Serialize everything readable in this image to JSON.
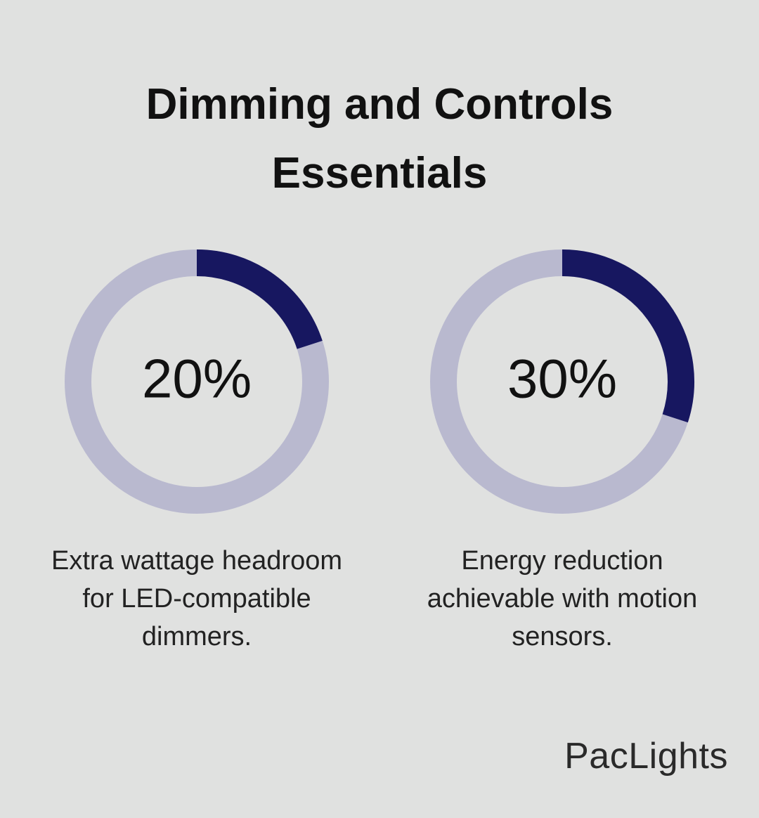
{
  "title": "Dimming and Controls Essentials",
  "chart_data": [
    {
      "type": "donut",
      "values": [
        20
      ],
      "value_labels": [
        "20%"
      ],
      "ylim": [
        0,
        100
      ],
      "color": "#171760",
      "track_color": "#b9b9cf",
      "caption": "Extra wattage headroom for LED-compatible dimmers."
    },
    {
      "type": "donut",
      "values": [
        30
      ],
      "value_labels": [
        "30%"
      ],
      "ylim": [
        0,
        100
      ],
      "color": "#171760",
      "track_color": "#b9b9cf",
      "caption": "Energy reduction achievable with motion sensors."
    }
  ],
  "brand": "PacLights"
}
